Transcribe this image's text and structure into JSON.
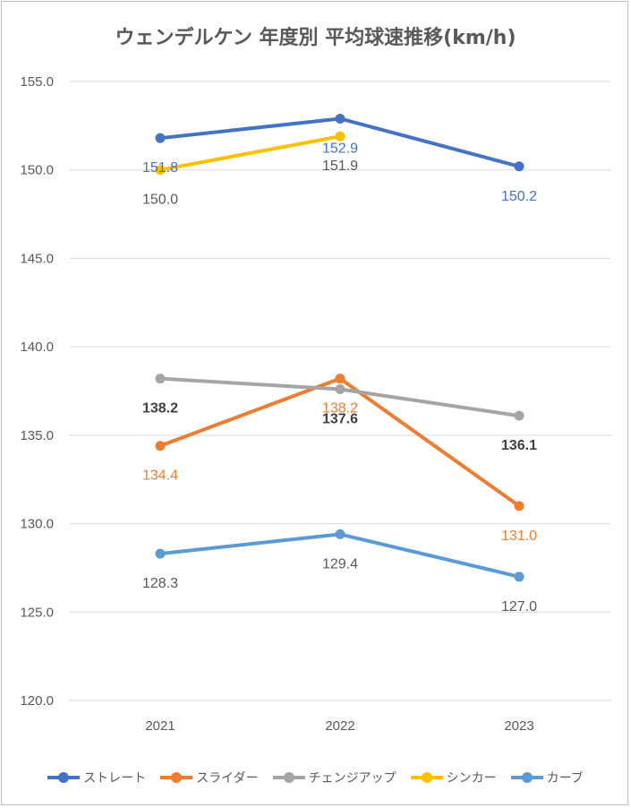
{
  "chart_data": {
    "type": "line",
    "title": "ウェンデルケン 年度別 平均球速推移(km/h)",
    "categories": [
      "2021",
      "2022",
      "2023"
    ],
    "ylim": [
      120,
      155
    ],
    "yticks": [
      "120.0",
      "125.0",
      "130.0",
      "135.0",
      "140.0",
      "145.0",
      "150.0",
      "155.0"
    ],
    "grid": true,
    "legend_position": "bottom",
    "series": [
      {
        "name": "ストレート",
        "color": "#4472C4",
        "values": [
          151.8,
          152.9,
          150.2
        ],
        "labels": [
          "151.8",
          "152.9",
          "150.2"
        ],
        "label_color": "#4472C4",
        "label_bold": false
      },
      {
        "name": "スライダー",
        "color": "#ED7D31",
        "values": [
          134.4,
          138.2,
          131.0
        ],
        "labels": [
          "134.4",
          "138.2",
          "131.0"
        ],
        "label_color": "#ED7D31",
        "label_bold": false
      },
      {
        "name": "チェンジアップ",
        "color": "#A5A5A5",
        "values": [
          138.2,
          137.6,
          136.1
        ],
        "labels": [
          "138.2",
          "137.6",
          "136.1"
        ],
        "label_color": "#404040",
        "label_bold": true
      },
      {
        "name": "シンカー",
        "color": "#FFC000",
        "values": [
          150.0,
          151.9,
          null
        ],
        "labels": [
          "150.0",
          "151.9",
          null
        ],
        "label_color": "#595959",
        "label_bold": false
      },
      {
        "name": "カーブ",
        "color": "#5B9BD5",
        "values": [
          128.3,
          129.4,
          127.0
        ],
        "labels": [
          "128.3",
          "129.4",
          "127.0"
        ],
        "label_color": "#595959",
        "label_bold": false
      }
    ]
  }
}
